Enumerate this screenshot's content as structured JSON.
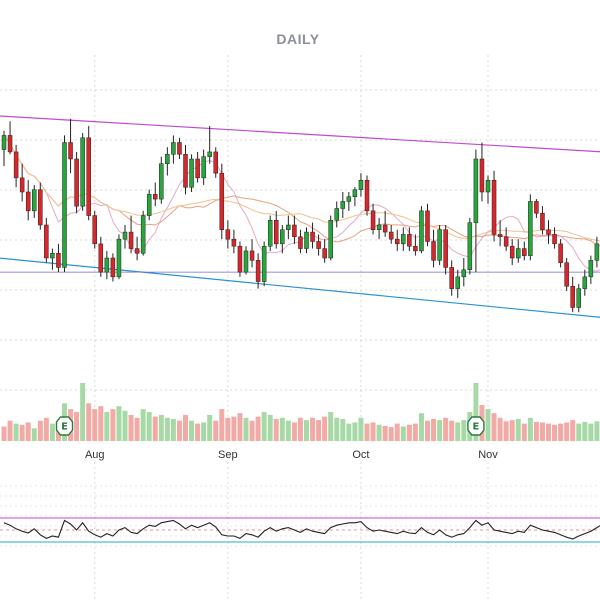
{
  "chart_data": {
    "type": "candlestick",
    "title": "DAILY",
    "xlabel": "",
    "ylabel": "",
    "x_ticks": [
      {
        "label": "Aug",
        "index": 15
      },
      {
        "label": "Sep",
        "index": 37
      },
      {
        "label": "Oct",
        "index": 59
      },
      {
        "label": "Nov",
        "index": 80
      }
    ],
    "earnings_markers": [
      {
        "label": "E",
        "index": 10
      },
      {
        "label": "E",
        "index": 78
      }
    ],
    "colors": {
      "up": "#27a63b",
      "down": "#d9262a",
      "volume_up": "#a7d9a6",
      "volume_down": "#f2aaa6",
      "channel_upper": "#c04bd0",
      "channel_lower": "#2a93d5",
      "support": "#6a6ad0",
      "ma_fast": "#e8a080",
      "ma_slow": "#f2c090",
      "ma_mid": "#e6a8c8",
      "rsi_line": "#222222",
      "rsi_upper": "#c04bd0",
      "rsi_lower": "#2aa8c8",
      "rsi_mid": "#d9262a",
      "grid": "#d8d8d8"
    },
    "price_range": [
      96,
      110
    ],
    "candles": [
      [
        106.2,
        107.0,
        105.5,
        106.8
      ],
      [
        106.8,
        107.4,
        106.0,
        106.1
      ],
      [
        106.1,
        106.4,
        104.6,
        105.0
      ],
      [
        105.0,
        105.6,
        104.0,
        104.4
      ],
      [
        104.4,
        104.9,
        103.2,
        103.6
      ],
      [
        103.6,
        104.7,
        103.3,
        104.5
      ],
      [
        104.5,
        104.8,
        102.8,
        103.0
      ],
      [
        103.0,
        103.3,
        101.4,
        101.6
      ],
      [
        101.6,
        102.0,
        101.1,
        101.8
      ],
      [
        101.8,
        102.2,
        101.0,
        101.2
      ],
      [
        101.2,
        106.8,
        101.0,
        106.5
      ],
      [
        106.5,
        107.5,
        105.2,
        105.8
      ],
      [
        105.8,
        106.1,
        103.5,
        103.8
      ],
      [
        103.8,
        106.9,
        103.6,
        106.7
      ],
      [
        106.7,
        107.2,
        103.2,
        103.4
      ],
      [
        103.4,
        103.6,
        102.0,
        102.2
      ],
      [
        102.2,
        102.5,
        100.8,
        101.0
      ],
      [
        101.0,
        101.9,
        100.7,
        101.6
      ],
      [
        101.6,
        101.8,
        100.6,
        100.8
      ],
      [
        100.8,
        102.6,
        100.7,
        102.4
      ],
      [
        102.4,
        103.0,
        102.0,
        102.7
      ],
      [
        102.7,
        103.4,
        101.8,
        102.0
      ],
      [
        102.0,
        102.5,
        101.5,
        101.8
      ],
      [
        101.8,
        103.6,
        101.7,
        103.4
      ],
      [
        103.4,
        104.5,
        103.2,
        104.3
      ],
      [
        104.3,
        104.8,
        103.8,
        104.1
      ],
      [
        104.1,
        105.9,
        103.9,
        105.6
      ],
      [
        105.6,
        106.3,
        105.1,
        106.0
      ],
      [
        106.0,
        106.8,
        105.6,
        106.5
      ],
      [
        106.5,
        106.7,
        105.8,
        106.0
      ],
      [
        106.0,
        106.4,
        104.3,
        104.6
      ],
      [
        104.6,
        106.0,
        104.4,
        105.8
      ],
      [
        105.8,
        106.1,
        104.8,
        105.0
      ],
      [
        105.0,
        106.2,
        104.7,
        105.9
      ],
      [
        105.9,
        107.2,
        105.6,
        106.1
      ],
      [
        106.1,
        106.3,
        105.0,
        105.2
      ],
      [
        105.2,
        105.6,
        102.4,
        102.8
      ],
      [
        102.8,
        103.2,
        102.0,
        102.4
      ],
      [
        102.4,
        102.8,
        101.8,
        102.1
      ],
      [
        102.1,
        102.3,
        100.8,
        101.0
      ],
      [
        101.0,
        102.1,
        100.9,
        101.9
      ],
      [
        101.9,
        102.4,
        101.2,
        101.5
      ],
      [
        101.5,
        101.8,
        100.3,
        100.6
      ],
      [
        100.6,
        102.3,
        100.4,
        102.1
      ],
      [
        102.1,
        103.4,
        101.9,
        103.2
      ],
      [
        103.2,
        103.6,
        102.0,
        102.2
      ],
      [
        102.2,
        103.0,
        101.8,
        102.8
      ],
      [
        102.8,
        103.4,
        102.4,
        103.0
      ],
      [
        103.0,
        103.4,
        102.2,
        102.5
      ],
      [
        102.5,
        102.8,
        101.8,
        102.0
      ],
      [
        102.0,
        102.9,
        101.8,
        102.7
      ],
      [
        102.7,
        103.1,
        102.0,
        102.3
      ],
      [
        102.3,
        102.6,
        101.7,
        102.0
      ],
      [
        102.0,
        102.4,
        101.4,
        101.6
      ],
      [
        101.6,
        103.4,
        101.5,
        103.2
      ],
      [
        103.2,
        104.0,
        102.9,
        103.7
      ],
      [
        103.7,
        104.4,
        103.3,
        104.0
      ],
      [
        104.0,
        104.4,
        103.6,
        104.2
      ],
      [
        104.2,
        104.6,
        103.8,
        104.5
      ],
      [
        104.5,
        105.2,
        104.2,
        104.9
      ],
      [
        104.9,
        105.1,
        103.4,
        103.6
      ],
      [
        103.6,
        103.9,
        102.6,
        102.8
      ],
      [
        102.8,
        103.3,
        102.4,
        103.0
      ],
      [
        103.0,
        103.6,
        102.5,
        102.7
      ],
      [
        102.7,
        103.0,
        102.2,
        102.4
      ],
      [
        102.4,
        102.8,
        101.9,
        102.2
      ],
      [
        102.2,
        102.9,
        101.9,
        102.6
      ],
      [
        102.6,
        102.9,
        101.9,
        102.1
      ],
      [
        102.1,
        102.6,
        101.7,
        101.9
      ],
      [
        101.9,
        103.8,
        101.8,
        103.6
      ],
      [
        103.6,
        103.9,
        102.1,
        102.3
      ],
      [
        102.3,
        102.8,
        101.2,
        101.5
      ],
      [
        101.5,
        103.0,
        101.3,
        102.8
      ],
      [
        102.8,
        103.0,
        100.9,
        101.2
      ],
      [
        101.2,
        101.5,
        100.0,
        100.3
      ],
      [
        100.3,
        101.1,
        99.9,
        100.8
      ],
      [
        100.8,
        101.6,
        100.4,
        101.1
      ],
      [
        101.1,
        103.3,
        100.9,
        103.1
      ],
      [
        103.1,
        106.2,
        101.0,
        105.8
      ],
      [
        105.8,
        106.5,
        104.0,
        104.4
      ],
      [
        104.4,
        105.1,
        103.9,
        104.9
      ],
      [
        104.9,
        105.3,
        102.3,
        102.6
      ],
      [
        102.6,
        103.2,
        102.1,
        102.5
      ],
      [
        102.5,
        102.9,
        101.9,
        102.1
      ],
      [
        102.1,
        102.4,
        101.3,
        101.6
      ],
      [
        101.6,
        102.4,
        101.4,
        102.0
      ],
      [
        102.0,
        102.3,
        101.5,
        101.7
      ],
      [
        101.7,
        104.3,
        101.5,
        104.0
      ],
      [
        104.0,
        104.1,
        103.3,
        103.5
      ],
      [
        103.5,
        103.8,
        102.6,
        102.8
      ],
      [
        102.8,
        103.2,
        102.2,
        102.6
      ],
      [
        102.6,
        102.9,
        102.0,
        102.2
      ],
      [
        102.2,
        102.4,
        101.2,
        101.4
      ],
      [
        101.4,
        101.6,
        100.2,
        100.4
      ],
      [
        100.4,
        100.8,
        99.3,
        99.5
      ],
      [
        99.5,
        100.5,
        99.3,
        100.3
      ],
      [
        100.3,
        101.1,
        100.0,
        100.8
      ],
      [
        100.8,
        101.7,
        100.5,
        101.5
      ],
      [
        101.5,
        102.5,
        101.2,
        102.2
      ],
      [
        102.2,
        103.5,
        102.0,
        103.2
      ]
    ],
    "volumes": [
      [
        0.25,
        "down"
      ],
      [
        0.35,
        "down"
      ],
      [
        0.3,
        "up"
      ],
      [
        0.28,
        "down"
      ],
      [
        0.32,
        "down"
      ],
      [
        0.22,
        "up"
      ],
      [
        0.35,
        "down"
      ],
      [
        0.4,
        "down"
      ],
      [
        0.3,
        "up"
      ],
      [
        0.33,
        "down"
      ],
      [
        0.65,
        "up"
      ],
      [
        0.55,
        "down"
      ],
      [
        0.5,
        "down"
      ],
      [
        1.0,
        "up"
      ],
      [
        0.65,
        "down"
      ],
      [
        0.55,
        "down"
      ],
      [
        0.6,
        "down"
      ],
      [
        0.5,
        "up"
      ],
      [
        0.55,
        "down"
      ],
      [
        0.6,
        "up"
      ],
      [
        0.52,
        "up"
      ],
      [
        0.45,
        "down"
      ],
      [
        0.4,
        "down"
      ],
      [
        0.55,
        "up"
      ],
      [
        0.5,
        "up"
      ],
      [
        0.42,
        "down"
      ],
      [
        0.45,
        "up"
      ],
      [
        0.4,
        "up"
      ],
      [
        0.38,
        "up"
      ],
      [
        0.35,
        "down"
      ],
      [
        0.45,
        "down"
      ],
      [
        0.35,
        "up"
      ],
      [
        0.3,
        "down"
      ],
      [
        0.32,
        "up"
      ],
      [
        0.45,
        "up"
      ],
      [
        0.35,
        "down"
      ],
      [
        0.55,
        "down"
      ],
      [
        0.4,
        "down"
      ],
      [
        0.42,
        "down"
      ],
      [
        0.48,
        "down"
      ],
      [
        0.4,
        "up"
      ],
      [
        0.35,
        "down"
      ],
      [
        0.42,
        "down"
      ],
      [
        0.5,
        "up"
      ],
      [
        0.45,
        "up"
      ],
      [
        0.38,
        "down"
      ],
      [
        0.4,
        "up"
      ],
      [
        0.35,
        "up"
      ],
      [
        0.32,
        "down"
      ],
      [
        0.4,
        "down"
      ],
      [
        0.36,
        "up"
      ],
      [
        0.4,
        "down"
      ],
      [
        0.36,
        "down"
      ],
      [
        0.42,
        "down"
      ],
      [
        0.5,
        "up"
      ],
      [
        0.4,
        "up"
      ],
      [
        0.38,
        "up"
      ],
      [
        0.3,
        "up"
      ],
      [
        0.32,
        "up"
      ],
      [
        0.4,
        "up"
      ],
      [
        0.3,
        "down"
      ],
      [
        0.32,
        "down"
      ],
      [
        0.28,
        "up"
      ],
      [
        0.26,
        "down"
      ],
      [
        0.24,
        "down"
      ],
      [
        0.3,
        "down"
      ],
      [
        0.25,
        "up"
      ],
      [
        0.28,
        "down"
      ],
      [
        0.3,
        "down"
      ],
      [
        0.48,
        "up"
      ],
      [
        0.35,
        "down"
      ],
      [
        0.38,
        "down"
      ],
      [
        0.36,
        "up"
      ],
      [
        0.4,
        "down"
      ],
      [
        0.35,
        "down"
      ],
      [
        0.32,
        "up"
      ],
      [
        0.36,
        "up"
      ],
      [
        0.5,
        "up"
      ],
      [
        1.0,
        "up"
      ],
      [
        0.62,
        "down"
      ],
      [
        0.55,
        "up"
      ],
      [
        0.48,
        "down"
      ],
      [
        0.4,
        "down"
      ],
      [
        0.34,
        "down"
      ],
      [
        0.36,
        "down"
      ],
      [
        0.38,
        "up"
      ],
      [
        0.3,
        "down"
      ],
      [
        0.4,
        "up"
      ],
      [
        0.33,
        "down"
      ],
      [
        0.32,
        "down"
      ],
      [
        0.3,
        "down"
      ],
      [
        0.28,
        "down"
      ],
      [
        0.3,
        "down"
      ],
      [
        0.32,
        "down"
      ],
      [
        0.36,
        "down"
      ],
      [
        0.3,
        "up"
      ],
      [
        0.33,
        "up"
      ],
      [
        0.3,
        "up"
      ],
      [
        0.34,
        "up"
      ],
      [
        0.38,
        "up"
      ]
    ],
    "rsi": [
      62,
      58,
      52,
      48,
      45,
      52,
      42,
      36,
      40,
      38,
      66,
      60,
      50,
      62,
      48,
      42,
      38,
      44,
      40,
      50,
      54,
      46,
      44,
      52,
      58,
      56,
      62,
      64,
      66,
      60,
      52,
      58,
      54,
      58,
      62,
      55,
      42,
      40,
      40,
      36,
      44,
      42,
      38,
      48,
      54,
      48,
      52,
      54,
      50,
      46,
      52,
      48,
      46,
      44,
      54,
      58,
      60,
      62,
      62,
      64,
      54,
      48,
      50,
      48,
      46,
      44,
      48,
      45,
      44,
      54,
      46,
      42,
      50,
      42,
      38,
      42,
      44,
      54,
      66,
      58,
      62,
      50,
      48,
      46,
      44,
      48,
      46,
      58,
      54,
      50,
      48,
      46,
      42,
      38,
      35,
      40,
      44,
      48,
      54,
      60
    ],
    "rsi_range": [
      0,
      100
    ],
    "rsi_levels": {
      "upper": 70,
      "lower": 30,
      "mid": 50
    }
  }
}
